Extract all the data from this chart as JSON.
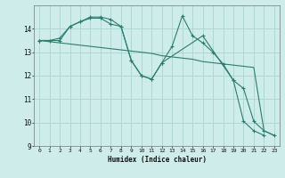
{
  "xlabel": "Humidex (Indice chaleur)",
  "bg_color": "#ceecea",
  "grid_color": "#afd8d4",
  "line_color": "#2d7d6e",
  "xlim": [
    -0.5,
    23.5
  ],
  "ylim": [
    9,
    15
  ],
  "yticks": [
    9,
    10,
    11,
    12,
    13,
    14
  ],
  "xticks": [
    0,
    1,
    2,
    3,
    4,
    5,
    6,
    7,
    8,
    9,
    10,
    11,
    12,
    13,
    14,
    15,
    16,
    17,
    18,
    19,
    20,
    21,
    22,
    23
  ],
  "line1_x": [
    0,
    1,
    2,
    3,
    4,
    5,
    6,
    7,
    8,
    9,
    10,
    11,
    12,
    13,
    14,
    15,
    16,
    17,
    18,
    19,
    20,
    21,
    22,
    23
  ],
  "line1_y": [
    13.5,
    13.45,
    13.4,
    13.35,
    13.3,
    13.25,
    13.2,
    13.15,
    13.1,
    13.05,
    13.0,
    12.95,
    12.85,
    12.8,
    12.75,
    12.7,
    12.6,
    12.55,
    12.5,
    12.45,
    12.4,
    12.35,
    9.65,
    9.45
  ],
  "line2_x": [
    0,
    2,
    3,
    4,
    5,
    6,
    7,
    8,
    9,
    10,
    11,
    12,
    16,
    19,
    20,
    21,
    22,
    23
  ],
  "line2_y": [
    13.5,
    13.5,
    14.1,
    14.3,
    14.45,
    14.45,
    14.2,
    14.1,
    12.65,
    12.0,
    11.85,
    12.55,
    13.7,
    11.8,
    11.45,
    10.05,
    9.65,
    9.45
  ],
  "line3_x": [
    0,
    1,
    2,
    3,
    4,
    5,
    6,
    7,
    8,
    9,
    10,
    11,
    12,
    13,
    14,
    15,
    16,
    17,
    18,
    19,
    20,
    21,
    22
  ],
  "line3_y": [
    13.5,
    13.5,
    13.6,
    14.1,
    14.3,
    14.5,
    14.5,
    14.4,
    14.1,
    12.65,
    12.0,
    11.85,
    12.55,
    13.25,
    14.55,
    13.7,
    13.4,
    13.0,
    12.5,
    11.8,
    10.05,
    9.65,
    9.45
  ]
}
